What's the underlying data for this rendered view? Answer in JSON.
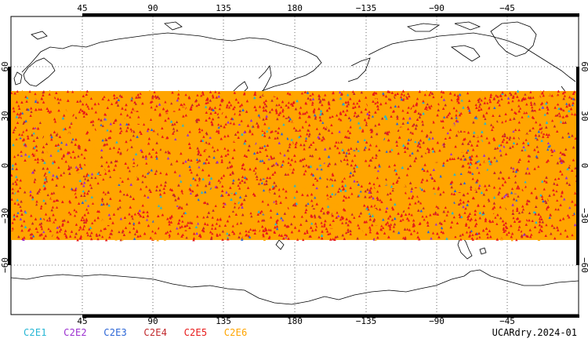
{
  "map": {
    "longitude_axis_labels": [
      "45",
      "90",
      "135",
      "180",
      "−135",
      "−90",
      "−45"
    ],
    "latitude_axis_labels": [
      "60",
      "30",
      "0",
      "−30",
      "−60"
    ],
    "colors": {
      "frame": "#000000",
      "coastline": "#000000",
      "gridline": "#000000"
    },
    "data_coverage_latitude_range": [
      -45,
      45
    ],
    "observation_categories": [
      {
        "label": "C2E1",
        "color": "#25b6d4"
      },
      {
        "label": "C2E2",
        "color": "#9b2fd0"
      },
      {
        "label": "C2E3",
        "color": "#2c66d6"
      },
      {
        "label": "C2E4",
        "color": "#c0282c"
      },
      {
        "label": "C2E5",
        "color": "#e81a1a"
      },
      {
        "label": "C2E6",
        "color": "#ffa500"
      }
    ]
  },
  "footer": {
    "stamp": "UCARdry.2024-01"
  }
}
